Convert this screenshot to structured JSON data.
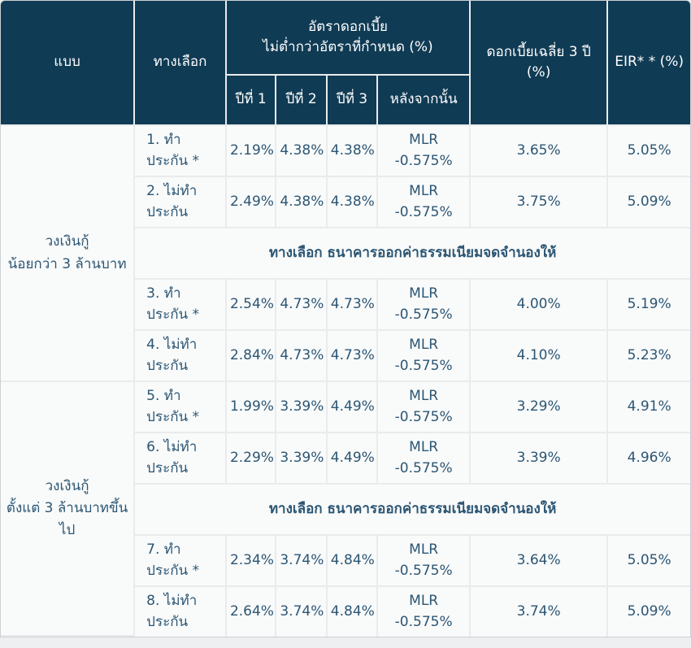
{
  "theme": {
    "header_bg": "#103b54",
    "header_text": "#ffffff",
    "body_bg": "#f9fafa",
    "body_text": "#2b5674",
    "grid_line": "#e9ebec",
    "outer_border": "#cdd1d4",
    "page_bg": "#edeff0"
  },
  "table": {
    "headers": {
      "type": "แบบ",
      "option": "ทางเลือก",
      "rate_group_line1": "อัตราดอกเบี้ย",
      "rate_group_line2": "ไม่ต่ำกว่าอัตราที่กำหนด (%)",
      "year1": "ปีที่ 1",
      "year2": "ปีที่ 2",
      "year3": "ปีที่ 3",
      "after": "หลังจากนั้น",
      "avg3yr": "ดอกเบี้ยเฉลี่ย 3 ปี (%)",
      "eir": "EIR* * (%)"
    },
    "sections": [
      {
        "group": {
          "line1": "วงเงินกู้",
          "line2": "น้อยกว่า 3 ล้านบาท"
        },
        "rows_top": [
          {
            "option": "1. ทำประกัน *",
            "year1": "2.19%",
            "year2": "4.38%",
            "year3": "4.38%",
            "after": "MLR -0.575%",
            "avg": "3.65%",
            "eir": "5.05%"
          },
          {
            "option": "2. ไม่ทำประกัน",
            "year1": "2.49%",
            "year2": "4.38%",
            "year3": "4.38%",
            "after": "MLR -0.575%",
            "avg": "3.75%",
            "eir": "5.09%"
          }
        ],
        "banner": "ทางเลือก ธนาคารออกค่าธรรมเนียมจดจำนองให้",
        "rows_bottom": [
          {
            "option": "3. ทำประกัน *",
            "year1": "2.54%",
            "year2": "4.73%",
            "year3": "4.73%",
            "after": "MLR -0.575%",
            "avg": "4.00%",
            "eir": "5.19%"
          },
          {
            "option": "4. ไม่ทำประกัน",
            "year1": "2.84%",
            "year2": "4.73%",
            "year3": "4.73%",
            "after": "MLR -0.575%",
            "avg": "4.10%",
            "eir": "5.23%"
          }
        ]
      },
      {
        "group": {
          "line1": "วงเงินกู้",
          "line2": "ตั้งแต่ 3 ล้านบาทขึ้นไป"
        },
        "rows_top": [
          {
            "option": "5. ทำประกัน *",
            "year1": "1.99%",
            "year2": "3.39%",
            "year3": "4.49%",
            "after": "MLR -0.575%",
            "avg": "3.29%",
            "eir": "4.91%"
          },
          {
            "option": "6. ไม่ทำประกัน",
            "year1": "2.29%",
            "year2": "3.39%",
            "year3": "4.49%",
            "after": "MLR -0.575%",
            "avg": "3.39%",
            "eir": "4.96%"
          }
        ],
        "banner": "ทางเลือก ธนาคารออกค่าธรรมเนียมจดจำนองให้",
        "rows_bottom": [
          {
            "option": "7. ทำประกัน *",
            "year1": "2.34%",
            "year2": "3.74%",
            "year3": "4.84%",
            "after": "MLR -0.575%",
            "avg": "3.64%",
            "eir": "5.05%"
          },
          {
            "option": "8. ไม่ทำประกัน",
            "year1": "2.64%",
            "year2": "3.74%",
            "year3": "4.84%",
            "after": "MLR -0.575%",
            "avg": "3.74%",
            "eir": "5.09%"
          }
        ]
      }
    ]
  },
  "chart_data": {
    "type": "table",
    "title": "",
    "columns": [
      "แบบ",
      "ทางเลือก",
      "ปีที่ 1",
      "ปีที่ 2",
      "ปีที่ 3",
      "หลังจากนั้น",
      "ดอกเบี้ยเฉลี่ย 3 ปี (%)",
      "EIR* * (%)"
    ],
    "rows": [
      [
        "วงเงินกู้ น้อยกว่า 3 ล้านบาท",
        "1. ทำประกัน *",
        "2.19%",
        "4.38%",
        "4.38%",
        "MLR -0.575%",
        "3.65%",
        "5.05%"
      ],
      [
        "วงเงินกู้ น้อยกว่า 3 ล้านบาท",
        "2. ไม่ทำประกัน",
        "2.49%",
        "4.38%",
        "4.38%",
        "MLR -0.575%",
        "3.75%",
        "5.09%"
      ],
      [
        "วงเงินกู้ น้อยกว่า 3 ล้านบาท",
        "ทางเลือก ธนาคารออกค่าธรรมเนียมจดจำนองให้",
        "",
        "",
        "",
        "",
        "",
        ""
      ],
      [
        "วงเงินกู้ น้อยกว่า 3 ล้านบาท",
        "3. ทำประกัน *",
        "2.54%",
        "4.73%",
        "4.73%",
        "MLR -0.575%",
        "4.00%",
        "5.19%"
      ],
      [
        "วงเงินกู้ น้อยกว่า 3 ล้านบาท",
        "4. ไม่ทำประกัน",
        "2.84%",
        "4.73%",
        "4.73%",
        "MLR -0.575%",
        "4.10%",
        "5.23%"
      ],
      [
        "วงเงินกู้ ตั้งแต่ 3 ล้านบาทขึ้นไป",
        "5. ทำประกัน *",
        "1.99%",
        "3.39%",
        "4.49%",
        "MLR -0.575%",
        "3.29%",
        "4.91%"
      ],
      [
        "วงเงินกู้ ตั้งแต่ 3 ล้านบาทขึ้นไป",
        "6. ไม่ทำประกัน",
        "2.29%",
        "3.39%",
        "4.49%",
        "MLR -0.575%",
        "3.39%",
        "4.96%"
      ],
      [
        "วงเงินกู้ ตั้งแต่ 3 ล้านบาทขึ้นไป",
        "ทางเลือก ธนาคารออกค่าธรรมเนียมจดจำนองให้",
        "",
        "",
        "",
        "",
        "",
        ""
      ],
      [
        "วงเงินกู้ ตั้งแต่ 3 ล้านบาทขึ้นไป",
        "7. ทำประกัน *",
        "2.34%",
        "3.74%",
        "4.84%",
        "MLR -0.575%",
        "3.64%",
        "5.05%"
      ],
      [
        "วงเงินกู้ ตั้งแต่ 3 ล้านบาทขึ้นไป",
        "8. ไม่ทำประกัน",
        "2.64%",
        "3.74%",
        "4.84%",
        "MLR -0.575%",
        "3.74%",
        "5.09%"
      ]
    ]
  }
}
